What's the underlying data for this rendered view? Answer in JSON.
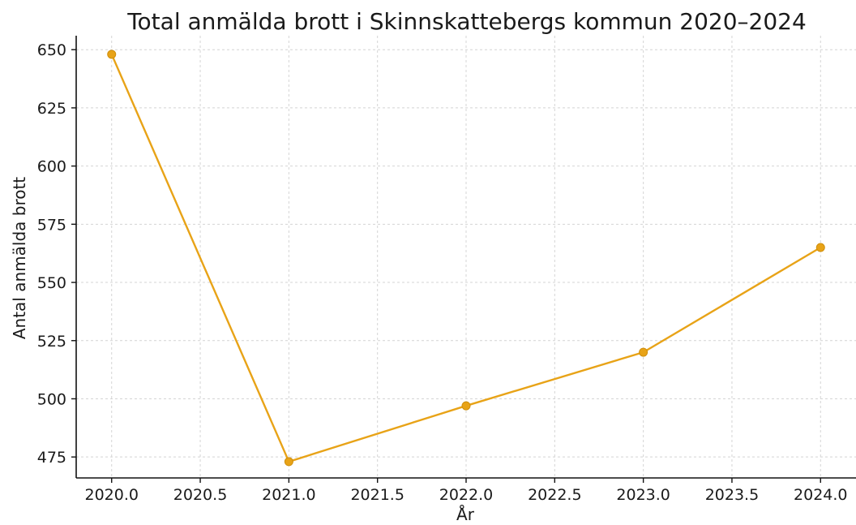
{
  "chart_data": {
    "type": "line",
    "title": "Total anmälda brott i Skinnskattebergs kommun 2020–2024",
    "xlabel": "År",
    "ylabel": "Antal anmälda brott",
    "x": [
      2020,
      2021,
      2022,
      2023,
      2024
    ],
    "series": [
      {
        "values": [
          648,
          473,
          497,
          520,
          565
        ],
        "color": "#e8a317"
      }
    ],
    "xlim": [
      2019.8,
      2024.2
    ],
    "ylim": [
      466,
      656
    ],
    "x_ticks": [
      2020.0,
      2020.5,
      2021.0,
      2021.5,
      2022.0,
      2022.5,
      2023.0,
      2023.5,
      2024.0
    ],
    "x_tick_labels": [
      "2020.0",
      "2020.5",
      "2021.0",
      "2021.5",
      "2022.0",
      "2022.5",
      "2023.0",
      "2023.5",
      "2024.0"
    ],
    "y_ticks": [
      475,
      500,
      525,
      550,
      575,
      600,
      625,
      650
    ],
    "y_tick_labels": [
      "475",
      "500",
      "525",
      "550",
      "575",
      "600",
      "625",
      "650"
    ],
    "grid": true,
    "marker": "circle",
    "legend": false
  }
}
